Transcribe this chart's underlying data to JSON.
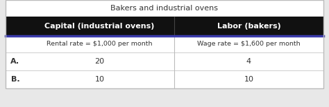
{
  "title": "Bakers and industrial ovens",
  "col1_header": "Capital (industrial ovens)",
  "col2_header": "Labor (bakers)",
  "col1_subheader": "Rental rate = $1,000 per month",
  "col2_subheader": "Wage rate = $1,600 per month",
  "rows": [
    {
      "label": "A.",
      "col1": "20",
      "col2": "4"
    },
    {
      "label": "B.",
      "col1": "10",
      "col2": "10"
    }
  ],
  "header_bg": "#111111",
  "header_fg": "#ffffff",
  "title_fg": "#333333",
  "subheader_fg": "#333333",
  "row_fg": "#333333",
  "label_fg": "#333333",
  "table_bg": "#ffffff",
  "outer_bg": "#ffffff",
  "border_color": "#bbbbbb",
  "divider_color": "#3a3aaa",
  "fig_bg": "#e8e8e8"
}
